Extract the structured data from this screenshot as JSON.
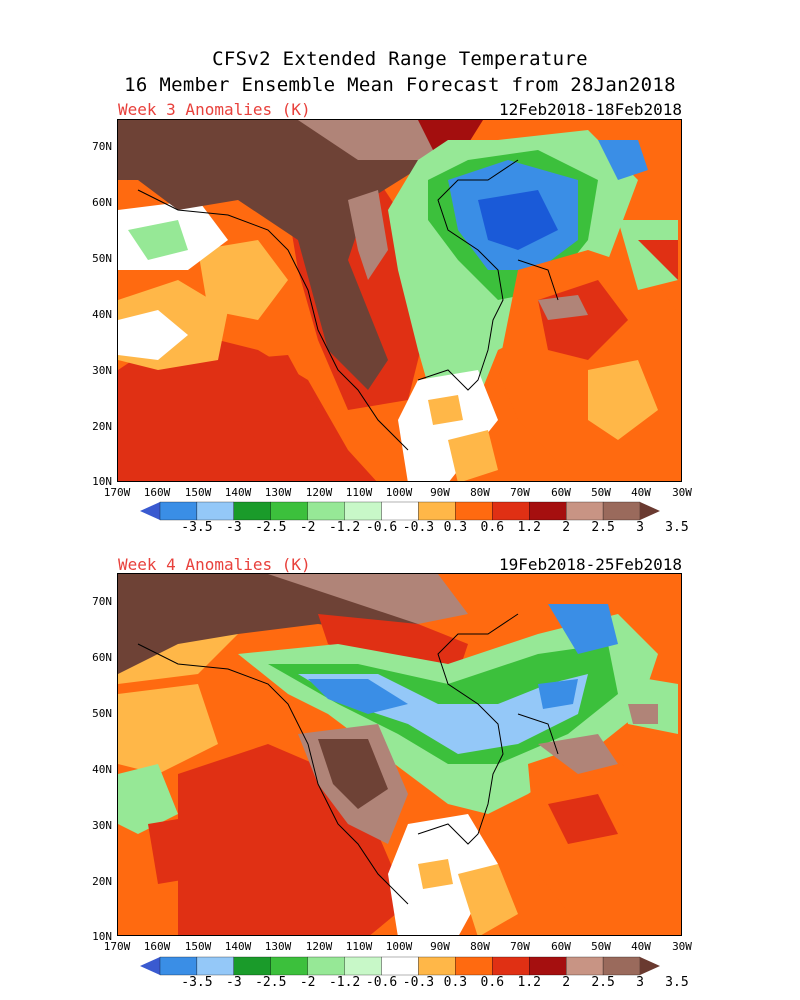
{
  "header": {
    "title_line1": "CFSv2 Extended Range Temperature",
    "title_line2": "16 Member Ensemble Mean Forecast from 28Jan2018"
  },
  "panels": [
    {
      "week_label": "Week 3 Anomalies (K)",
      "date_range": "12Feb2018-18Feb2018"
    },
    {
      "week_label": "Week 4 Anomalies (K)",
      "date_range": "19Feb2018-25Feb2018"
    }
  ],
  "axes": {
    "lat_labels": [
      "70N",
      "60N",
      "50N",
      "40N",
      "30N",
      "20N",
      "10N"
    ],
    "lon_labels": [
      "170W",
      "160W",
      "150W",
      "140W",
      "130W",
      "120W",
      "110W",
      "100W",
      "90W",
      "80W",
      "70W",
      "60W",
      "50W",
      "40W",
      "30W"
    ]
  },
  "colorbar": {
    "labels": [
      "-3.5",
      "-3",
      "-2.5",
      "-2",
      "-1.2",
      "-0.6",
      "-0.3",
      "0.3",
      "0.6",
      "1.2",
      "2",
      "2.5",
      "3",
      "3.5"
    ],
    "colors": [
      "#3a8ee6",
      "#94c8f8",
      "#1a9b2a",
      "#3cc03c",
      "#96e896",
      "#c8f8c8",
      "#ffffff",
      "#ffb748",
      "#ff6a10",
      "#e03014",
      "#a50f0f",
      "#c89484",
      "#9a6a5c"
    ],
    "low_end_color": "#3a5ad0",
    "high_end_color": "#6a3a30"
  },
  "palette": {
    "brown": "#6e4236",
    "tan": "#b08478",
    "darkred": "#a30e0e",
    "red": "#e03014",
    "orange": "#ff6a10",
    "lightorange": "#ffb748",
    "white": "#ffffff",
    "lightgreen": "#96e896",
    "green": "#3cc03c",
    "darkgreen": "#1a9b2a",
    "lightblue": "#94c8f8",
    "blue": "#3a8ee6",
    "darkblue": "#1a5ad8"
  }
}
